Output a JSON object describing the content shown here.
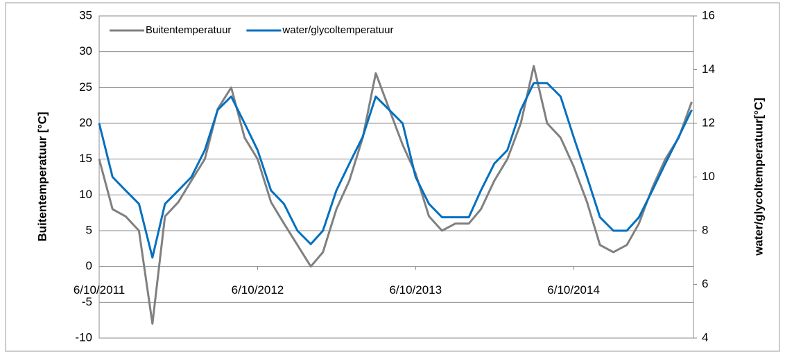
{
  "chart_data": {
    "type": "line",
    "y_label": "Buitentemperatuur [°C]",
    "y2_label": "water/glycoltemperatuur[°C]",
    "x": [
      "2011-10-06",
      "2011-11-06",
      "2011-12-06",
      "2012-01-06",
      "2012-02-06",
      "2012-03-06",
      "2012-04-06",
      "2012-05-06",
      "2012-06-06",
      "2012-07-06",
      "2012-08-06",
      "2012-09-06",
      "2012-10-06",
      "2012-11-06",
      "2012-12-06",
      "2013-01-06",
      "2013-02-06",
      "2013-03-06",
      "2013-04-06",
      "2013-05-06",
      "2013-06-06",
      "2013-07-06",
      "2013-08-06",
      "2013-09-06",
      "2013-10-06",
      "2013-11-06",
      "2013-12-06",
      "2014-01-06",
      "2014-02-06",
      "2014-03-06",
      "2014-04-06",
      "2014-05-06",
      "2014-06-06",
      "2014-07-06",
      "2014-08-06",
      "2014-09-06",
      "2014-10-06",
      "2014-11-06",
      "2014-12-06",
      "2015-01-06",
      "2015-02-06",
      "2015-03-06",
      "2015-04-06",
      "2015-05-06",
      "2015-06-06",
      "2015-07-06"
    ],
    "series": [
      {
        "name": "Buitentemperatuur",
        "color": "#808080",
        "values": [
          15,
          8,
          7,
          5,
          -8,
          7,
          9,
          12,
          15,
          22,
          25,
          18,
          15,
          9,
          6,
          3,
          0,
          2,
          8,
          12,
          18,
          27,
          22,
          17,
          13,
          7,
          5,
          6,
          6,
          8,
          12,
          15,
          20,
          28,
          20,
          18,
          14,
          9,
          3,
          2,
          3,
          6,
          11,
          15,
          18,
          23
        ]
      },
      {
        "name": "water/glycoltemperatuur",
        "color": "#0070c0",
        "axis": "y2",
        "values": [
          12,
          10,
          9.5,
          9,
          7,
          9,
          9.5,
          10,
          11,
          12.5,
          13,
          12,
          11,
          9.5,
          9,
          8,
          7.5,
          8,
          9.5,
          10.5,
          11.5,
          13,
          12.5,
          12,
          10,
          9,
          8.5,
          8.5,
          8.5,
          9.5,
          10.5,
          11,
          12.5,
          13.5,
          13.5,
          13,
          11.5,
          10,
          8.5,
          8,
          8,
          8.5,
          9.5,
          10.5,
          11.5,
          12.5
        ]
      }
    ],
    "xlim": [
      "2011-10-06",
      "2015-07-10"
    ],
    "xticks": [
      {
        "value": "2011-10-06",
        "label": "6/10/2011"
      },
      {
        "value": "2012-10-06",
        "label": "6/10/2012"
      },
      {
        "value": "2013-10-06",
        "label": "6/10/2013"
      },
      {
        "value": "2014-10-06",
        "label": "6/10/2014"
      }
    ],
    "ylim": [
      -10,
      35
    ],
    "yticks": [
      -10,
      -5,
      0,
      5,
      10,
      15,
      20,
      25,
      30,
      35
    ],
    "y2lim": [
      4,
      16
    ],
    "y2ticks": [
      4,
      6,
      8,
      10,
      12,
      14,
      16
    ],
    "grid": true,
    "legend": "top-left"
  }
}
